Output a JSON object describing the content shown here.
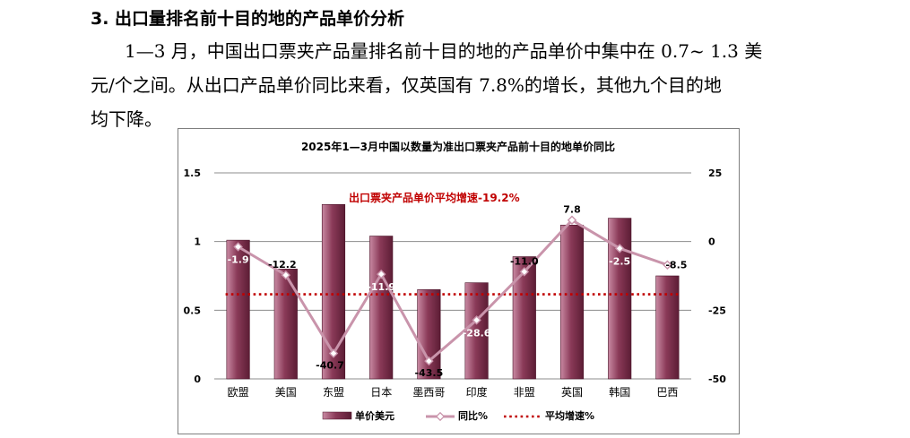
{
  "section": {
    "heading": "3. 出口量排名前十目的地的产品单价分析",
    "paragraph_lines": [
      "1—3 月，中国出口票夹产品量排名前十目的地的产品单价中集中在 0.7~ 1.3 美",
      "元/个之间。从出口产品单价同比来看，仅英国有 7.8%的增长，其他九个目的地",
      "均下降。"
    ]
  },
  "chart_data": {
    "type": "bar",
    "title": "2025年1—3月中国以数量为准出口票夹产品前十目的地单价同比",
    "categories": [
      "欧盟",
      "美国",
      "东盟",
      "日本",
      "墨西哥",
      "印度",
      "非盟",
      "英国",
      "韩国",
      "巴西"
    ],
    "series": [
      {
        "name": "单价美元",
        "kind": "bar",
        "axis": "left",
        "color": "#7b2c48",
        "values": [
          1.01,
          0.8,
          1.27,
          1.04,
          0.65,
          0.7,
          0.89,
          1.12,
          1.17,
          0.75
        ]
      },
      {
        "name": "同比%",
        "kind": "line",
        "axis": "right",
        "color": "#c994ab",
        "values": [
          -1.9,
          -12.2,
          -40.7,
          -11.9,
          -43.5,
          -28.6,
          -11.0,
          7.8,
          -2.5,
          -8.5
        ],
        "labels": [
          "-1.9",
          "-12.2",
          "-40.7",
          "-11.9",
          "-43.5",
          "-28.6",
          "-11.0",
          "7.8",
          "-2.5",
          "-8.5"
        ]
      },
      {
        "name": "平均增速%",
        "kind": "dotted-line",
        "axis": "right",
        "color": "#c00000",
        "value": -19.2
      }
    ],
    "annotation": "出口票夹产品单价平均增速-19.2%",
    "y_left": {
      "ylim": [
        0,
        1.5
      ],
      "ticks": [
        "0",
        "0.5",
        "1",
        "1.5"
      ],
      "tick_values": [
        0,
        0.5,
        1,
        1.5
      ]
    },
    "y_right": {
      "ylim": [
        -50,
        25
      ],
      "ticks": [
        "-50",
        "-25",
        "0",
        "25"
      ],
      "tick_values": [
        -50,
        -25,
        0,
        25
      ]
    },
    "grid": true,
    "legend_position": "bottom"
  }
}
